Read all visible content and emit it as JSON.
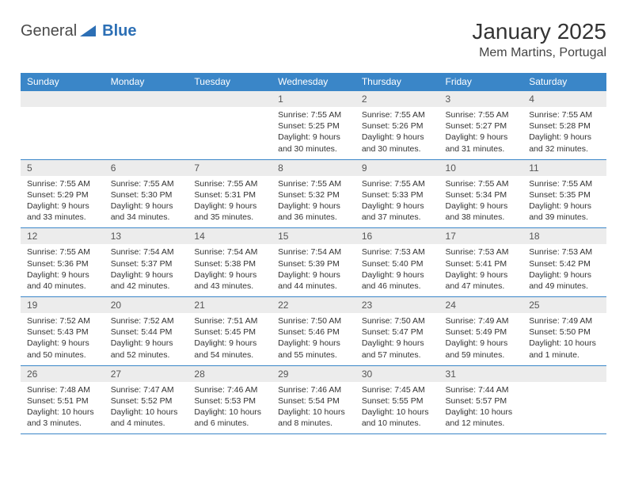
{
  "brand": {
    "g": "General",
    "b": "Blue"
  },
  "title": "January 2025",
  "location": "Mem Martins, Portugal",
  "colors": {
    "header_bg": "#3a86c8",
    "header_fg": "#ffffff",
    "daynum_bg": "#ececec",
    "border": "#3a86c8",
    "text": "#333333"
  },
  "weekdays": [
    "Sunday",
    "Monday",
    "Tuesday",
    "Wednesday",
    "Thursday",
    "Friday",
    "Saturday"
  ],
  "weeks": [
    [
      {
        "n": "",
        "sr": "",
        "ss": "",
        "dl": ""
      },
      {
        "n": "",
        "sr": "",
        "ss": "",
        "dl": ""
      },
      {
        "n": "",
        "sr": "",
        "ss": "",
        "dl": ""
      },
      {
        "n": "1",
        "sr": "Sunrise: 7:55 AM",
        "ss": "Sunset: 5:25 PM",
        "dl": "Daylight: 9 hours and 30 minutes."
      },
      {
        "n": "2",
        "sr": "Sunrise: 7:55 AM",
        "ss": "Sunset: 5:26 PM",
        "dl": "Daylight: 9 hours and 30 minutes."
      },
      {
        "n": "3",
        "sr": "Sunrise: 7:55 AM",
        "ss": "Sunset: 5:27 PM",
        "dl": "Daylight: 9 hours and 31 minutes."
      },
      {
        "n": "4",
        "sr": "Sunrise: 7:55 AM",
        "ss": "Sunset: 5:28 PM",
        "dl": "Daylight: 9 hours and 32 minutes."
      }
    ],
    [
      {
        "n": "5",
        "sr": "Sunrise: 7:55 AM",
        "ss": "Sunset: 5:29 PM",
        "dl": "Daylight: 9 hours and 33 minutes."
      },
      {
        "n": "6",
        "sr": "Sunrise: 7:55 AM",
        "ss": "Sunset: 5:30 PM",
        "dl": "Daylight: 9 hours and 34 minutes."
      },
      {
        "n": "7",
        "sr": "Sunrise: 7:55 AM",
        "ss": "Sunset: 5:31 PM",
        "dl": "Daylight: 9 hours and 35 minutes."
      },
      {
        "n": "8",
        "sr": "Sunrise: 7:55 AM",
        "ss": "Sunset: 5:32 PM",
        "dl": "Daylight: 9 hours and 36 minutes."
      },
      {
        "n": "9",
        "sr": "Sunrise: 7:55 AM",
        "ss": "Sunset: 5:33 PM",
        "dl": "Daylight: 9 hours and 37 minutes."
      },
      {
        "n": "10",
        "sr": "Sunrise: 7:55 AM",
        "ss": "Sunset: 5:34 PM",
        "dl": "Daylight: 9 hours and 38 minutes."
      },
      {
        "n": "11",
        "sr": "Sunrise: 7:55 AM",
        "ss": "Sunset: 5:35 PM",
        "dl": "Daylight: 9 hours and 39 minutes."
      }
    ],
    [
      {
        "n": "12",
        "sr": "Sunrise: 7:55 AM",
        "ss": "Sunset: 5:36 PM",
        "dl": "Daylight: 9 hours and 40 minutes."
      },
      {
        "n": "13",
        "sr": "Sunrise: 7:54 AM",
        "ss": "Sunset: 5:37 PM",
        "dl": "Daylight: 9 hours and 42 minutes."
      },
      {
        "n": "14",
        "sr": "Sunrise: 7:54 AM",
        "ss": "Sunset: 5:38 PM",
        "dl": "Daylight: 9 hours and 43 minutes."
      },
      {
        "n": "15",
        "sr": "Sunrise: 7:54 AM",
        "ss": "Sunset: 5:39 PM",
        "dl": "Daylight: 9 hours and 44 minutes."
      },
      {
        "n": "16",
        "sr": "Sunrise: 7:53 AM",
        "ss": "Sunset: 5:40 PM",
        "dl": "Daylight: 9 hours and 46 minutes."
      },
      {
        "n": "17",
        "sr": "Sunrise: 7:53 AM",
        "ss": "Sunset: 5:41 PM",
        "dl": "Daylight: 9 hours and 47 minutes."
      },
      {
        "n": "18",
        "sr": "Sunrise: 7:53 AM",
        "ss": "Sunset: 5:42 PM",
        "dl": "Daylight: 9 hours and 49 minutes."
      }
    ],
    [
      {
        "n": "19",
        "sr": "Sunrise: 7:52 AM",
        "ss": "Sunset: 5:43 PM",
        "dl": "Daylight: 9 hours and 50 minutes."
      },
      {
        "n": "20",
        "sr": "Sunrise: 7:52 AM",
        "ss": "Sunset: 5:44 PM",
        "dl": "Daylight: 9 hours and 52 minutes."
      },
      {
        "n": "21",
        "sr": "Sunrise: 7:51 AM",
        "ss": "Sunset: 5:45 PM",
        "dl": "Daylight: 9 hours and 54 minutes."
      },
      {
        "n": "22",
        "sr": "Sunrise: 7:50 AM",
        "ss": "Sunset: 5:46 PM",
        "dl": "Daylight: 9 hours and 55 minutes."
      },
      {
        "n": "23",
        "sr": "Sunrise: 7:50 AM",
        "ss": "Sunset: 5:47 PM",
        "dl": "Daylight: 9 hours and 57 minutes."
      },
      {
        "n": "24",
        "sr": "Sunrise: 7:49 AM",
        "ss": "Sunset: 5:49 PM",
        "dl": "Daylight: 9 hours and 59 minutes."
      },
      {
        "n": "25",
        "sr": "Sunrise: 7:49 AM",
        "ss": "Sunset: 5:50 PM",
        "dl": "Daylight: 10 hours and 1 minute."
      }
    ],
    [
      {
        "n": "26",
        "sr": "Sunrise: 7:48 AM",
        "ss": "Sunset: 5:51 PM",
        "dl": "Daylight: 10 hours and 3 minutes."
      },
      {
        "n": "27",
        "sr": "Sunrise: 7:47 AM",
        "ss": "Sunset: 5:52 PM",
        "dl": "Daylight: 10 hours and 4 minutes."
      },
      {
        "n": "28",
        "sr": "Sunrise: 7:46 AM",
        "ss": "Sunset: 5:53 PM",
        "dl": "Daylight: 10 hours and 6 minutes."
      },
      {
        "n": "29",
        "sr": "Sunrise: 7:46 AM",
        "ss": "Sunset: 5:54 PM",
        "dl": "Daylight: 10 hours and 8 minutes."
      },
      {
        "n": "30",
        "sr": "Sunrise: 7:45 AM",
        "ss": "Sunset: 5:55 PM",
        "dl": "Daylight: 10 hours and 10 minutes."
      },
      {
        "n": "31",
        "sr": "Sunrise: 7:44 AM",
        "ss": "Sunset: 5:57 PM",
        "dl": "Daylight: 10 hours and 12 minutes."
      },
      {
        "n": "",
        "sr": "",
        "ss": "",
        "dl": ""
      }
    ]
  ]
}
